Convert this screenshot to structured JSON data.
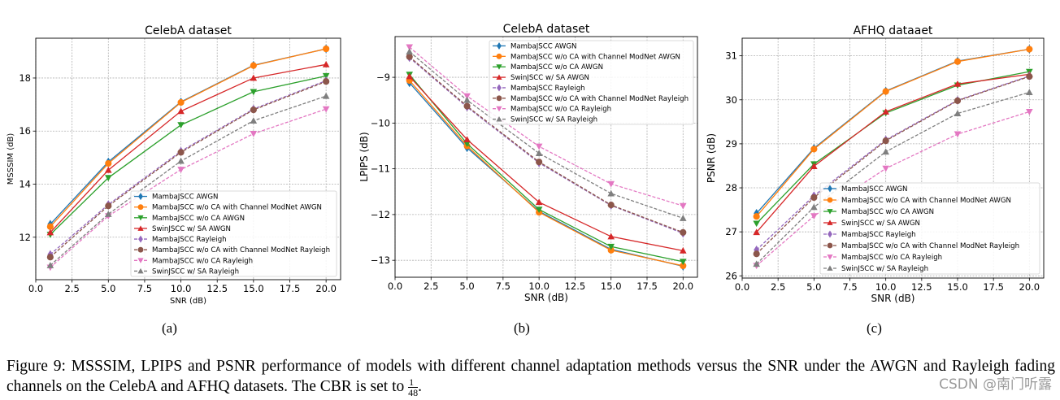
{
  "chart_data": [
    {
      "type": "line",
      "title": "CelebA dataset",
      "xlabel": "SNR (dB)",
      "ylabel": "MSSSIM (dB)",
      "xlim": [
        0,
        21
      ],
      "ylim": [
        10.4,
        19.5
      ],
      "xticks": [
        "0.0",
        "2.5",
        "5.0",
        "7.5",
        "10.0",
        "12.5",
        "15.0",
        "17.5",
        "20.0"
      ],
      "yticks": [
        12,
        14,
        16,
        18
      ],
      "grid": true,
      "legend": "lower-right",
      "x": [
        1,
        5,
        10,
        15,
        20
      ],
      "series": [
        {
          "name": "MambaJSCC AWGN",
          "values": [
            12.49,
            14.84,
            17.1,
            18.48,
            19.1
          ]
        },
        {
          "name": "MambaJSCC w/o CA with Channel ModNet AWGN",
          "values": [
            12.4,
            14.78,
            17.08,
            18.47,
            19.1
          ]
        },
        {
          "name": "MambaJSCC w/o CA AWGN",
          "values": [
            12.1,
            14.24,
            16.23,
            17.48,
            18.08
          ]
        },
        {
          "name": "SwinJSCC w/ SA AWGN",
          "values": [
            12.18,
            14.53,
            16.75,
            18.0,
            18.51
          ]
        },
        {
          "name": "MambaJSCC Rayleigh",
          "values": [
            11.35,
            13.23,
            15.24,
            16.83,
            17.9
          ]
        },
        {
          "name": "MambaJSCC w/o CA with Channel ModNet Rayleigh",
          "values": [
            11.25,
            13.18,
            15.2,
            16.8,
            17.87
          ]
        },
        {
          "name": "MambaJSCC w/o CA Rayleigh",
          "values": [
            10.86,
            12.8,
            14.55,
            15.9,
            16.83
          ]
        },
        {
          "name": "SwinJSCC w/ SA Rayleigh",
          "values": [
            10.94,
            12.87,
            14.87,
            16.39,
            17.32
          ]
        }
      ]
    },
    {
      "type": "line",
      "title": "CelebA dataset",
      "xlabel": "SNR (dB)",
      "ylabel": "LPIPS (dB)",
      "xlim": [
        0,
        21
      ],
      "ylim": [
        -13.37,
        -8.11
      ],
      "xticks": [
        "0.0",
        "2.5",
        "5.0",
        "7.5",
        "10.0",
        "12.5",
        "15.0",
        "17.5",
        "20.0"
      ],
      "yticks": [
        -13,
        -12,
        -11,
        -10,
        -9
      ],
      "grid": true,
      "legend": "upper-right",
      "x": [
        1,
        5,
        10,
        15,
        20
      ],
      "series": [
        {
          "name": "MambaJSCC AWGN",
          "values": [
            -9.12,
            -10.54,
            -11.93,
            -12.76,
            -13.13
          ]
        },
        {
          "name": "MambaJSCC w/o CA with Channel ModNet AWGN",
          "values": [
            -9.07,
            -10.5,
            -11.95,
            -12.78,
            -13.12
          ]
        },
        {
          "name": "MambaJSCC w/o CA AWGN",
          "values": [
            -8.94,
            -10.45,
            -11.89,
            -12.7,
            -13.03
          ]
        },
        {
          "name": "SwinJSCC w/ SA AWGN",
          "values": [
            -8.98,
            -10.36,
            -11.73,
            -12.48,
            -12.79
          ]
        },
        {
          "name": "MambaJSCC Rayleigh",
          "values": [
            -8.57,
            -9.65,
            -10.87,
            -11.8,
            -12.41
          ]
        },
        {
          "name": "MambaJSCC w/o CA with Channel ModNet Rayleigh",
          "values": [
            -8.55,
            -9.63,
            -10.85,
            -11.79,
            -12.39
          ]
        },
        {
          "name": "MambaJSCC w/o CA Rayleigh",
          "values": [
            -8.34,
            -9.41,
            -10.51,
            -11.33,
            -11.81
          ]
        },
        {
          "name": "SwinJSCC w/ SA Rayleigh",
          "values": [
            -8.44,
            -9.5,
            -10.66,
            -11.54,
            -12.08
          ]
        }
      ]
    },
    {
      "type": "line",
      "title": "AFHQ dataaet",
      "xlabel": "SNR (dB)",
      "ylabel": "PSNR (dB)",
      "xlim": [
        0,
        21
      ],
      "ylim": [
        25.95,
        31.4
      ],
      "xticks": [
        "0.0",
        "2.5",
        "5.0",
        "7.5",
        "10.0",
        "12.5",
        "15.0",
        "17.5",
        "20.0"
      ],
      "yticks": [
        26,
        27,
        28,
        29,
        30,
        31
      ],
      "grid": true,
      "legend": "lower-right",
      "x": [
        1,
        5,
        10,
        15,
        20
      ],
      "series": [
        {
          "name": "MambaJSCC AWGN",
          "values": [
            27.42,
            28.9,
            30.2,
            30.88,
            31.15
          ]
        },
        {
          "name": "MambaJSCC w/o CA with Channel ModNet AWGN",
          "values": [
            27.35,
            28.88,
            30.19,
            30.87,
            31.15
          ]
        },
        {
          "name": "MambaJSCC w/o CA AWGN",
          "values": [
            27.19,
            28.54,
            29.7,
            30.33,
            30.64
          ]
        },
        {
          "name": "SwinJSCC w/ SA AWGN",
          "values": [
            26.99,
            28.49,
            29.73,
            30.36,
            30.58
          ]
        },
        {
          "name": "MambaJSCC Rayleigh",
          "values": [
            26.59,
            27.82,
            29.09,
            29.99,
            30.54
          ]
        },
        {
          "name": "MambaJSCC w/o CA with Channel ModNet Rayleigh",
          "values": [
            26.5,
            27.78,
            29.07,
            29.98,
            30.53
          ]
        },
        {
          "name": "MambaJSCC w/o CA Rayleigh",
          "values": [
            26.23,
            27.36,
            28.44,
            29.22,
            29.73
          ]
        },
        {
          "name": "SwinJSCC w/ SA Rayleigh",
          "values": [
            26.27,
            27.56,
            28.82,
            29.69,
            30.17
          ]
        }
      ]
    }
  ],
  "series_style": [
    {
      "color": "#1f77b4",
      "marker": "diamond",
      "dashed": false
    },
    {
      "color": "#ff7f0e",
      "marker": "circle",
      "dashed": false
    },
    {
      "color": "#2ca02c",
      "marker": "triangle-down",
      "dashed": false
    },
    {
      "color": "#d62728",
      "marker": "triangle-up",
      "dashed": false
    },
    {
      "color": "#9467bd",
      "marker": "diamond",
      "dashed": true
    },
    {
      "color": "#8c564b",
      "marker": "circle",
      "dashed": true
    },
    {
      "color": "#e377c2",
      "marker": "triangle-down",
      "dashed": true
    },
    {
      "color": "#7f7f7f",
      "marker": "triangle-up",
      "dashed": true
    }
  ],
  "subcaptions": [
    "(a)",
    "(b)",
    "(c)"
  ],
  "caption": {
    "text": "Figure 9: MSSSIM, LPIPS and PSNR performance of models with different channel adaptation methods versus the SNR under the AWGN and Rayleigh fading channels on the CelebA and AFHQ datasets. The CBR is set to",
    "frac_num": "1",
    "frac_den": "48",
    "end": "."
  },
  "watermark": "CSDN @南门听露"
}
